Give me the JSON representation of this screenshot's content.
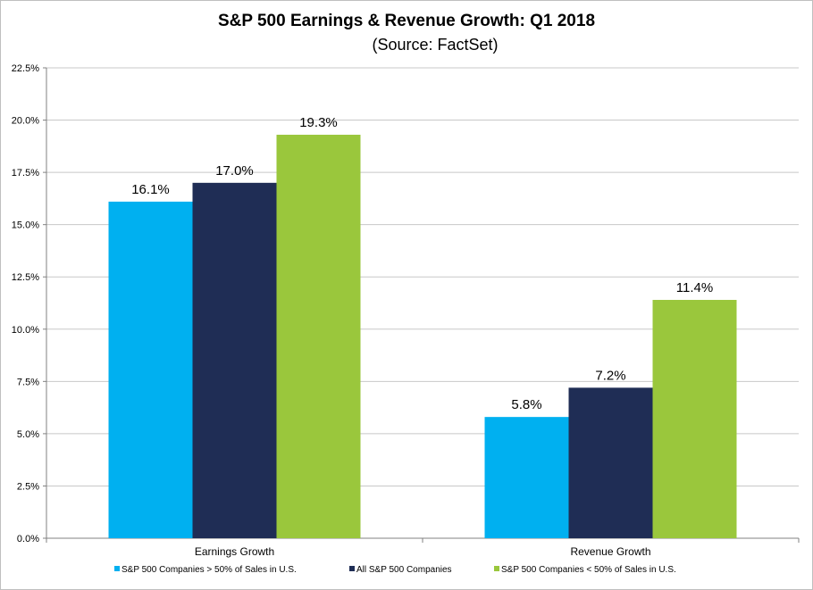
{
  "chart_data": {
    "type": "bar",
    "title": "S&P 500 Earnings & Revenue Growth: Q1 2018",
    "subtitle": "(Source: FactSet)",
    "categories": [
      "Earnings Growth",
      "Revenue Growth"
    ],
    "series": [
      {
        "name": "S&P 500 Companies > 50% of Sales in U.S.",
        "values": [
          16.1,
          5.8
        ],
        "labels": [
          "16.1%",
          "5.8%"
        ],
        "color": "#00b0f0"
      },
      {
        "name": "All S&P 500 Companies",
        "values": [
          17.0,
          7.2
        ],
        "labels": [
          "17.0%",
          "7.2%"
        ],
        "color": "#1f2d55"
      },
      {
        "name": "S&P 500 Companies < 50% of Sales in U.S.",
        "values": [
          19.3,
          11.4
        ],
        "labels": [
          "19.3%",
          "11.4%"
        ],
        "color": "#9ac73c"
      }
    ],
    "ylim": [
      0,
      22.5
    ],
    "yticks": [
      0,
      2.5,
      5,
      7.5,
      10,
      12.5,
      15,
      17.5,
      20,
      22.5
    ],
    "ytick_labels": [
      "0.0%",
      "2.5%",
      "5.0%",
      "7.5%",
      "10.0%",
      "12.5%",
      "15.0%",
      "17.5%",
      "20.0%",
      "22.5%"
    ],
    "grid": true,
    "legend_position": "bottom",
    "xlabel": "",
    "ylabel": ""
  }
}
